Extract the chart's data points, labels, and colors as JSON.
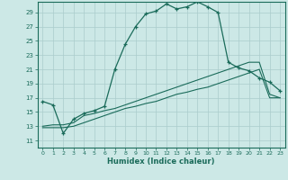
{
  "xlabel": "Humidex (Indice chaleur)",
  "bg_color": "#cce8e6",
  "line_color": "#1a6b5a",
  "grid_color": "#aacccc",
  "x_ticks": [
    0,
    1,
    2,
    3,
    4,
    5,
    6,
    7,
    8,
    9,
    10,
    11,
    12,
    13,
    14,
    15,
    16,
    17,
    18,
    19,
    20,
    21,
    22,
    23
  ],
  "y_ticks": [
    11,
    13,
    15,
    17,
    19,
    21,
    23,
    25,
    27,
    29
  ],
  "xlim": [
    -0.5,
    23.5
  ],
  "ylim": [
    10.0,
    30.5
  ],
  "line1_x": [
    0,
    1,
    2,
    3,
    4,
    5,
    6,
    7,
    8,
    9,
    10,
    11,
    12,
    13,
    14,
    15,
    16,
    17,
    18,
    19,
    20,
    21,
    22,
    23
  ],
  "line1_y": [
    16.5,
    16.0,
    12.0,
    14.0,
    14.8,
    15.2,
    15.8,
    21.0,
    24.5,
    27.0,
    28.8,
    29.2,
    30.2,
    29.5,
    29.8,
    30.5,
    29.8,
    29.0,
    22.0,
    21.2,
    20.8,
    19.8,
    19.2,
    18.0
  ],
  "line2_x": [
    0,
    1,
    2,
    3,
    4,
    5,
    6,
    7,
    8,
    9,
    10,
    11,
    12,
    13,
    14,
    15,
    16,
    17,
    18,
    19,
    20,
    21,
    22,
    23
  ],
  "line2_y": [
    13.0,
    13.2,
    13.2,
    13.5,
    14.5,
    14.8,
    15.2,
    15.5,
    16.0,
    16.5,
    17.0,
    17.5,
    18.0,
    18.5,
    19.0,
    19.5,
    20.0,
    20.5,
    21.0,
    21.5,
    22.0,
    22.0,
    17.5,
    17.0
  ],
  "line3_x": [
    0,
    1,
    2,
    3,
    4,
    5,
    6,
    7,
    8,
    9,
    10,
    11,
    12,
    13,
    14,
    15,
    16,
    17,
    18,
    19,
    20,
    21,
    22,
    23
  ],
  "line3_y": [
    12.8,
    12.8,
    12.8,
    13.0,
    13.5,
    14.0,
    14.5,
    15.0,
    15.5,
    15.8,
    16.2,
    16.5,
    17.0,
    17.5,
    17.8,
    18.2,
    18.5,
    19.0,
    19.5,
    20.0,
    20.5,
    21.0,
    17.0,
    17.0
  ]
}
